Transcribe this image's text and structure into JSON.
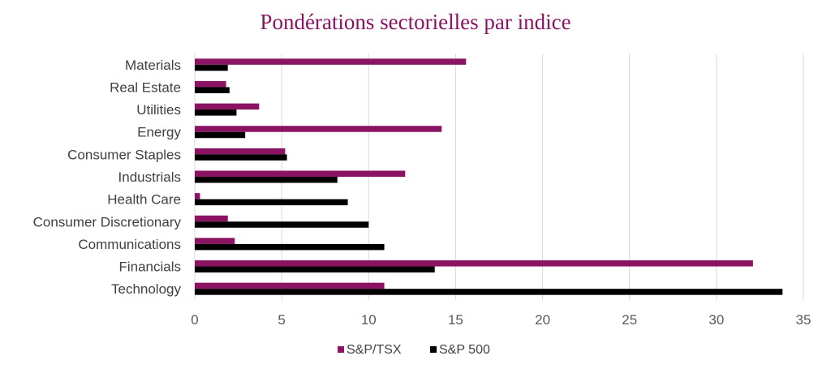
{
  "chart_data": {
    "type": "bar",
    "orientation": "horizontal",
    "title": "Pondérations sectorielles par indice",
    "xlabel": "",
    "ylabel": "",
    "xlim": [
      0,
      35
    ],
    "x_ticks": [
      0,
      5,
      10,
      15,
      20,
      25,
      30,
      35
    ],
    "grid": "vertical",
    "legend_position": "bottom",
    "categories": [
      "Materials",
      "Real Estate",
      "Utilities",
      "Energy",
      "Consumer Staples",
      "Industrials",
      "Health Care",
      "Consumer Discretionary",
      "Communications",
      "Financials",
      "Technology"
    ],
    "series": [
      {
        "name": "S&P/TSX",
        "color": "#8a1461",
        "values": [
          15.6,
          1.8,
          3.7,
          14.2,
          5.2,
          12.1,
          0.3,
          1.9,
          2.3,
          32.1,
          10.9
        ]
      },
      {
        "name": "S&P 500",
        "color": "#000000",
        "values": [
          1.9,
          2.0,
          2.4,
          2.9,
          5.3,
          8.2,
          8.8,
          10.0,
          10.9,
          13.8,
          33.8
        ]
      }
    ]
  }
}
